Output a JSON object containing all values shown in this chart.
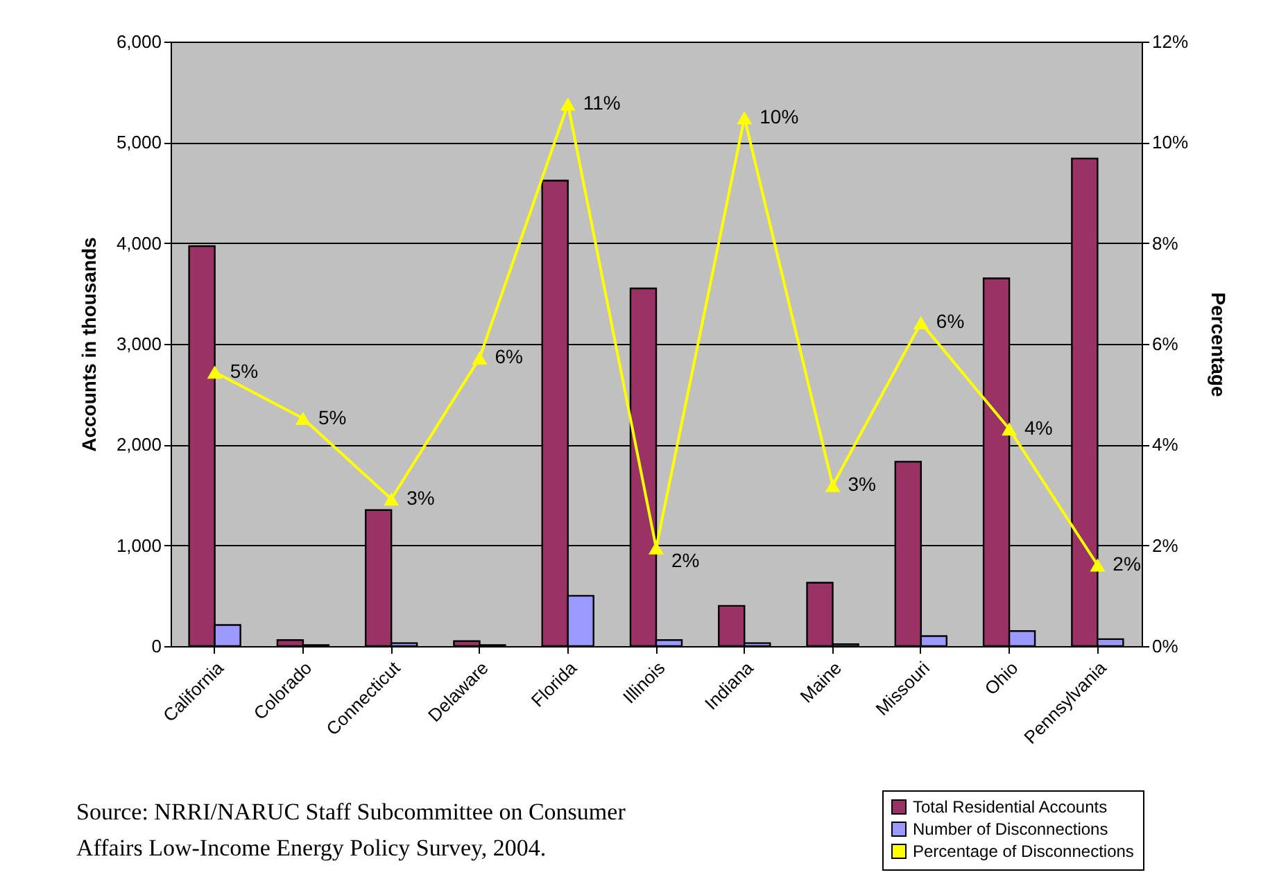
{
  "chart_data": {
    "type": "bar",
    "ylabel": "Accounts in thousands",
    "y2label": "Percentage",
    "categories": [
      "California",
      "Colorado",
      "Connecticut",
      "Delaware",
      "Florida",
      "Illinois",
      "Indiana",
      "Maine",
      "Missouri",
      "Ohio",
      "Pennsylvania"
    ],
    "series": [
      {
        "name": "Total Residential Accounts",
        "color": "#993366",
        "values": [
          3970,
          60,
          1350,
          50,
          4620,
          3550,
          400,
          630,
          1830,
          3650,
          4840
        ]
      },
      {
        "name": "Number of Disconnections",
        "color": "#9999ff",
        "values": [
          210,
          10,
          30,
          10,
          500,
          60,
          30,
          20,
          100,
          150,
          70
        ]
      },
      {
        "name": "Percentage of Disconnections",
        "type": "line",
        "axis": "y2",
        "color": "#ffff00",
        "marker": "triangle",
        "values": [
          5.44,
          4.52,
          2.92,
          5.72,
          10.76,
          1.95,
          10.49,
          3.19,
          6.42,
          4.31,
          1.61
        ],
        "value_labels": [
          "5%",
          "5%",
          "3%",
          "6%",
          "11%",
          "2%",
          "10%",
          "3%",
          "6%",
          "4%",
          "2%"
        ]
      }
    ],
    "ylim": [
      0,
      6000
    ],
    "yticks": [
      {
        "value": 0,
        "label": "0"
      },
      {
        "value": 1000,
        "label": "1,000"
      },
      {
        "value": 2000,
        "label": "2,000"
      },
      {
        "value": 3000,
        "label": "3,000"
      },
      {
        "value": 4000,
        "label": "4,000"
      },
      {
        "value": 5000,
        "label": "5,000"
      },
      {
        "value": 6000,
        "label": "6,000"
      }
    ],
    "y2lim": [
      0,
      12
    ],
    "y2ticks": [
      {
        "value": 0,
        "label": "0%"
      },
      {
        "value": 2,
        "label": "2%"
      },
      {
        "value": 4,
        "label": "4%"
      },
      {
        "value": 6,
        "label": "6%"
      },
      {
        "value": 8,
        "label": "8%"
      },
      {
        "value": 10,
        "label": "10%"
      },
      {
        "value": 12,
        "label": "12%"
      }
    ],
    "grid": "y",
    "legend": "bottom right",
    "annotations": [
      "Source: NRRI/NARUC Staff Subcommittee on Consumer Affairs Low-Income Energy Policy Survey, 2004."
    ]
  }
}
